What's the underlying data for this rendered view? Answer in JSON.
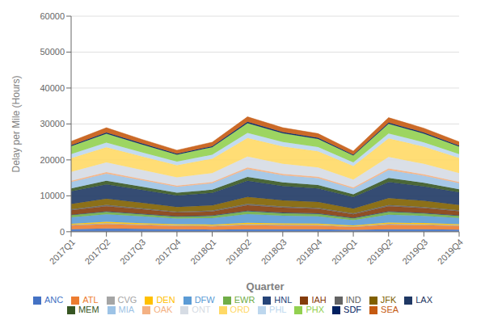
{
  "chart_data": {
    "type": "area",
    "stacked": true,
    "xlabel": "Quarter",
    "ylabel": "Delay per Mile (Hours)",
    "categories": [
      "2017Q1",
      "2017Q2",
      "2017Q3",
      "2017Q4",
      "2018Q1",
      "2018Q2",
      "2018Q3",
      "2018Q4",
      "2019Q1",
      "2019Q2",
      "2019Q3",
      "2019Q4"
    ],
    "series": [
      {
        "name": "ANC",
        "color": "#4472C4",
        "values": [
          700,
          900,
          800,
          700,
          600,
          700,
          700,
          700,
          500,
          700,
          700,
          600
        ]
      },
      {
        "name": "ATL",
        "color": "#ED7D31",
        "values": [
          1000,
          1200,
          1000,
          900,
          900,
          1100,
          1000,
          1000,
          800,
          1200,
          1100,
          1000
        ]
      },
      {
        "name": "CVG",
        "color": "#A5A5A5",
        "values": [
          200,
          250,
          220,
          190,
          200,
          280,
          260,
          240,
          180,
          280,
          260,
          220
        ]
      },
      {
        "name": "DEN",
        "color": "#FFC000",
        "values": [
          300,
          400,
          350,
          300,
          300,
          400,
          380,
          350,
          260,
          380,
          350,
          300
        ]
      },
      {
        "name": "DFW",
        "color": "#5B9BD5",
        "values": [
          1800,
          2100,
          1900,
          1600,
          1800,
          2400,
          2100,
          2000,
          1500,
          2200,
          2000,
          1700
        ]
      },
      {
        "name": "EWR",
        "color": "#70AD47",
        "values": [
          600,
          700,
          600,
          500,
          600,
          800,
          700,
          650,
          500,
          750,
          680,
          600
        ]
      },
      {
        "name": "HNL",
        "color": "#264478",
        "values": [
          150,
          170,
          160,
          140,
          150,
          200,
          190,
          170,
          130,
          190,
          180,
          150
        ]
      },
      {
        "name": "IAH",
        "color": "#843C0C",
        "values": [
          1200,
          1400,
          1200,
          1000,
          1100,
          1500,
          1350,
          1250,
          1000,
          1400,
          1300,
          1100
        ]
      },
      {
        "name": "IND",
        "color": "#636363",
        "values": [
          280,
          350,
          300,
          260,
          280,
          380,
          340,
          310,
          240,
          360,
          330,
          280
        ]
      },
      {
        "name": "JFK",
        "color": "#806000",
        "values": [
          1500,
          1700,
          1500,
          1300,
          1400,
          1900,
          1700,
          1600,
          1300,
          1900,
          1700,
          1500
        ]
      },
      {
        "name": "LAX",
        "color": "#1F3864",
        "values": [
          3500,
          4000,
          3600,
          3200,
          3500,
          4500,
          4000,
          3800,
          3200,
          4500,
          4000,
          3500
        ]
      },
      {
        "name": "MEM",
        "color": "#375623",
        "values": [
          800,
          1000,
          900,
          800,
          850,
          1100,
          1000,
          950,
          800,
          1100,
          1000,
          850
        ]
      },
      {
        "name": "MIA",
        "color": "#9DC3E6",
        "values": [
          1800,
          2000,
          1800,
          1600,
          1800,
          2200,
          2000,
          1900,
          1600,
          2200,
          2000,
          1700
        ]
      },
      {
        "name": "OAK",
        "color": "#F4B183",
        "values": [
          350,
          420,
          380,
          330,
          350,
          450,
          400,
          370,
          300,
          430,
          390,
          340
        ]
      },
      {
        "name": "ONT",
        "color": "#D6DCE4",
        "values": [
          2500,
          2700,
          2500,
          2300,
          2500,
          3000,
          2800,
          2600,
          2200,
          3200,
          2900,
          2500
        ]
      },
      {
        "name": "ORD",
        "color": "#FFD966",
        "values": [
          3800,
          4200,
          3800,
          3400,
          4000,
          5200,
          4800,
          4500,
          3800,
          5200,
          4800,
          4200
        ]
      },
      {
        "name": "PHL",
        "color": "#BDD7EE",
        "values": [
          1100,
          1300,
          1100,
          1000,
          1100,
          1400,
          1250,
          1180,
          1000,
          1350,
          1200,
          1050
        ]
      },
      {
        "name": "PHX",
        "color": "#92D050",
        "values": [
          2200,
          2500,
          2200,
          1900,
          2100,
          2700,
          2400,
          2250,
          1900,
          2700,
          2400,
          2100
        ]
      },
      {
        "name": "SDF",
        "color": "#002060",
        "values": [
          280,
          350,
          310,
          270,
          290,
          380,
          340,
          310,
          250,
          360,
          330,
          280
        ]
      },
      {
        "name": "SEA",
        "color": "#C55A11",
        "values": [
          1100,
          1300,
          1100,
          1000,
          1100,
          1400,
          1250,
          1180,
          1000,
          1350,
          1200,
          1050
        ]
      }
    ],
    "ylim": [
      0,
      60000
    ],
    "yticks": [
      0,
      10000,
      20000,
      30000,
      40000,
      50000,
      60000
    ],
    "grid": true,
    "legend": "bottom"
  }
}
